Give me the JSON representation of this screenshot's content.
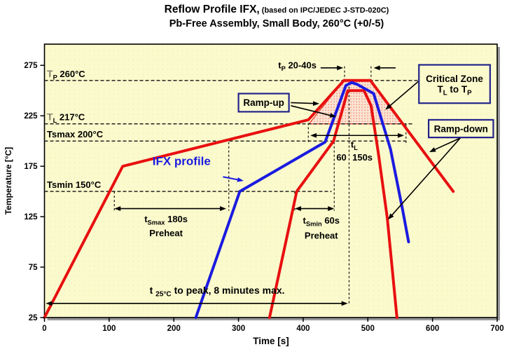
{
  "title": {
    "line1_main": "Reflow Profile IFX,",
    "line1_paren": " (based on IPC/JEDEC J-STD-020C)",
    "line2": "Pb-Free Assembly, Small Body, 260°C (+0/-5)"
  },
  "colors": {
    "plot_bg": "#FBFACD",
    "bg_dot": "#ECEBB6",
    "profile_red": "#E81010",
    "profile_blue": "#1B1BE0",
    "box_border": "#23238C",
    "box_fill": "#FBFACD",
    "shadow": "#9A9A9A",
    "dashed_line": "#111111",
    "ref_T_gray": "#84846E",
    "critical_fill": "#FBE3D4",
    "critical_dot": "#F29A77"
  },
  "chart_data": {
    "type": "line",
    "xlabel": "Time [s]",
    "ylabel": "Temperature [°C]",
    "xlim": [
      0,
      700
    ],
    "ylim": [
      25,
      296
    ],
    "x_ticks": [
      0,
      100,
      200,
      300,
      400,
      500,
      600,
      700
    ],
    "y_ticks": [
      25,
      75,
      125,
      175,
      225,
      275
    ],
    "grid": false,
    "legend": "none",
    "series": [
      {
        "name": "limit-profile-slow",
        "color": "#E81010",
        "width": 4,
        "points": [
          [
            0,
            25
          ],
          [
            121,
            175
          ],
          [
            408,
            221
          ],
          [
            463,
            260
          ],
          [
            504,
            260
          ],
          [
            632,
            150
          ]
        ]
      },
      {
        "name": "limit-profile-fast",
        "color": "#E81010",
        "width": 4,
        "points": [
          [
            348,
            25
          ],
          [
            390,
            150
          ],
          [
            447,
            200
          ],
          [
            469,
            250
          ],
          [
            494,
            250
          ],
          [
            505,
            235
          ],
          [
            516,
            189
          ],
          [
            530,
            124
          ],
          [
            545,
            25
          ]
        ]
      },
      {
        "name": "ifx-profile",
        "color": "#1B1BE0",
        "width": 4,
        "points": [
          [
            234,
            25
          ],
          [
            302,
            150
          ],
          [
            434,
            199
          ],
          [
            466,
            255
          ],
          [
            475,
            258
          ],
          [
            484,
            256
          ],
          [
            509,
            247
          ],
          [
            535,
            192
          ],
          [
            554,
            131
          ],
          [
            563,
            100
          ]
        ]
      }
    ],
    "critical_zone": {
      "name": "critical-zone",
      "polygon": [
        [
          409,
          217
        ],
        [
          463,
          260
        ],
        [
          504,
          260
        ],
        [
          556,
          217
        ]
      ]
    },
    "reference_lines": [
      {
        "name": "ref-tp",
        "T": 260,
        "t_start": 0,
        "t_end": 581,
        "parts": [
          {
            "text": "T",
            "color": "#84846E",
            "size": 14
          },
          {
            "text": "P",
            "sub": true
          },
          {
            "text": " 260°C"
          }
        ]
      },
      {
        "name": "ref-tl",
        "T": 217,
        "t_start": 0,
        "t_end": 570,
        "parts": [
          {
            "text": "T",
            "color": "#84846E",
            "size": 14
          },
          {
            "text": "L",
            "sub": true
          },
          {
            "text": " 217°C"
          }
        ]
      },
      {
        "name": "ref-tsmax",
        "T": 200,
        "t_start": 0,
        "t_end": 562,
        "parts": [
          {
            "text": "Tsmax 200°C"
          }
        ]
      },
      {
        "name": "ref-tsmin",
        "T": 150,
        "t_start": 0,
        "t_end": 444,
        "parts": [
          {
            "text": "Tsmin 150°C"
          }
        ]
      }
    ],
    "vlines": [
      {
        "name": "vline-slow-150",
        "t": 108,
        "T1": 150,
        "T2": 131
      },
      {
        "name": "vline-slow-200",
        "t": 285,
        "T1": 199,
        "T2": 131
      },
      {
        "name": "vline-fast-150",
        "t": 387,
        "T1": 150,
        "T2": 131
      },
      {
        "name": "vline-fast-200",
        "t": 448,
        "T1": 199,
        "T2": 131
      },
      {
        "name": "vline-tl-start",
        "t": 408,
        "T1": 222,
        "T2": 198
      },
      {
        "name": "vline-tl-end",
        "t": 559,
        "T1": 217,
        "T2": 196
      },
      {
        "name": "vline-tp-start",
        "t": 464,
        "T1": 274,
        "T2": 261
      },
      {
        "name": "vline-tp-end",
        "t": 505,
        "T1": 274,
        "T2": 261
      },
      {
        "name": "vline-peak-time",
        "t": 471,
        "T1": 258,
        "T2": 38
      }
    ],
    "arrows": [
      {
        "name": "arrow-preheat-max-window",
        "t1": 108,
        "T1": 133,
        "t2": 281,
        "T2": 133,
        "heads": "both"
      },
      {
        "name": "arrow-preheat-min-window",
        "t1": 387,
        "T1": 133,
        "t2": 448,
        "T2": 133,
        "heads": "both"
      },
      {
        "name": "arrow-liquidus-window",
        "t1": 411,
        "T1": 205.5,
        "t2": 556,
        "T2": 205.5,
        "heads": "both"
      },
      {
        "name": "arrow-time-to-peak",
        "t1": 2,
        "T1": 39,
        "t2": 469,
        "T2": 39,
        "heads": "both"
      },
      {
        "name": "arrow-tp-left",
        "t1": 427,
        "T1": 272.5,
        "t2": 462,
        "T2": 272.5,
        "heads": "end"
      },
      {
        "name": "arrow-tp-right",
        "t1": 543,
        "T1": 272.5,
        "t2": 509,
        "T2": 272.5,
        "heads": "end"
      }
    ],
    "labels": [
      {
        "name": "label-tp-window",
        "t": 391,
        "T": 272,
        "anchor": "middle",
        "size": 13,
        "parts": [
          {
            "text": "t"
          },
          {
            "text": "P",
            "sub": true
          },
          {
            "text": " 20-40s"
          }
        ]
      },
      {
        "name": "label-tl",
        "t": 479,
        "T": 193.5,
        "anchor": "middle",
        "size": 13,
        "parts": [
          {
            "text": "t"
          },
          {
            "text": "L",
            "sub": true
          }
        ]
      },
      {
        "name": "label-tl-range-low",
        "t": 467,
        "T": 180.5,
        "anchor": "end",
        "size": 13,
        "parts": [
          {
            "text": "60"
          }
        ]
      },
      {
        "name": "label-tl-range-high",
        "t": 476,
        "T": 180.5,
        "anchor": "start",
        "size": 13,
        "parts": [
          {
            "text": "150s"
          }
        ]
      },
      {
        "name": "label-tsmax-time",
        "t": 188,
        "T": 119.5,
        "anchor": "middle",
        "size": 13,
        "parts": [
          {
            "text": "t"
          },
          {
            "text": "Smax",
            "sub": true
          },
          {
            "text": " 180s"
          }
        ]
      },
      {
        "name": "label-tsmax-preheat",
        "t": 188,
        "T": 105.5,
        "anchor": "middle",
        "size": 13,
        "parts": [
          {
            "text": "Preheat"
          }
        ]
      },
      {
        "name": "label-tsmin-time",
        "t": 428,
        "T": 118,
        "anchor": "middle",
        "size": 13,
        "parts": [
          {
            "text": "t"
          },
          {
            "text": "Smin",
            "sub": true
          },
          {
            "text": " 60s"
          }
        ]
      },
      {
        "name": "label-tsmin-preheat",
        "t": 428,
        "T": 103,
        "anchor": "middle",
        "size": 13,
        "parts": [
          {
            "text": "Preheat"
          }
        ]
      },
      {
        "name": "label-time-to-peak",
        "t": 267,
        "T": 48.5,
        "anchor": "middle",
        "size": 14,
        "parts": [
          {
            "text": "t "
          },
          {
            "text": "25°C",
            "sub": true
          },
          {
            "text": " to peak, 8 minutes max."
          }
        ]
      }
    ],
    "boxes": [
      {
        "name": "ramp-up-box",
        "t1": 300,
        "t2": 378,
        "Tlo": 229,
        "Thi": 247,
        "size": 13.5,
        "lines": [
          [
            {
              "text": "Ramp-up"
            }
          ]
        ],
        "arrows": [
          [
            381,
            238,
            425,
            237
          ],
          [
            381,
            235,
            451,
            224
          ]
        ]
      },
      {
        "name": "critical-zone-box",
        "t1": 579,
        "t2": 689,
        "Tlo": 237.5,
        "Thi": 275.5,
        "size": 13.5,
        "lines": [
          [
            {
              "text": "Critical Zone"
            }
          ],
          [
            {
              "text": "T"
            },
            {
              "text": "L",
              "sub": true
            },
            {
              "text": " to T"
            },
            {
              "text": "P",
              "sub": true
            }
          ]
        ],
        "arrows": [
          [
            578,
            259,
            527,
            231
          ]
        ]
      },
      {
        "name": "ramp-down-box",
        "t1": 594,
        "t2": 694,
        "Tlo": 203.5,
        "Thi": 221,
        "size": 13.5,
        "lines": [
          [
            {
              "text": "Ramp-down"
            }
          ]
        ],
        "arrows": [
          [
            643,
            203,
            595,
            189
          ],
          [
            643,
            203,
            531,
            122
          ]
        ]
      }
    ],
    "ifx_label": {
      "name": "ifx-profile-label",
      "text": "IFX profile",
      "t": 212,
      "T": 176,
      "size": 17,
      "arrow": [
        276,
        164.5,
        308,
        160.5
      ]
    }
  }
}
